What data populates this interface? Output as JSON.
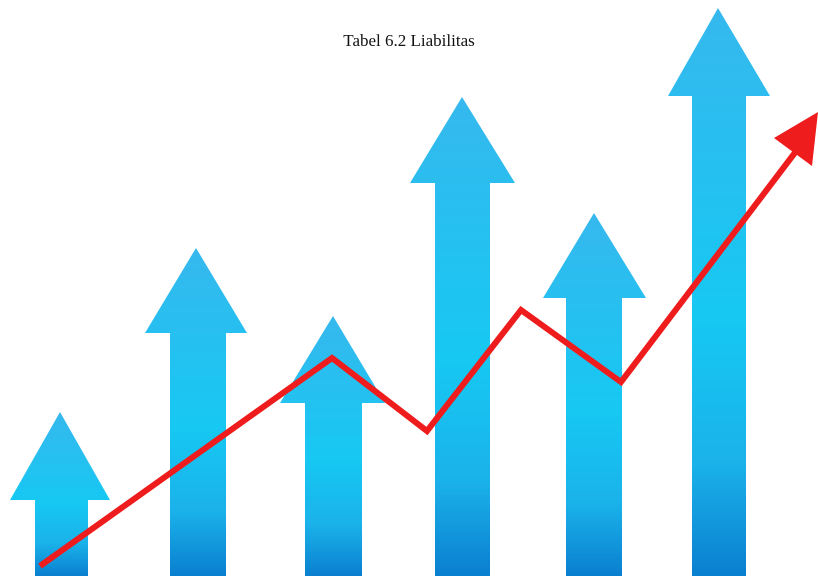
{
  "title": "Tabel 6.2 Liabilitas"
}
